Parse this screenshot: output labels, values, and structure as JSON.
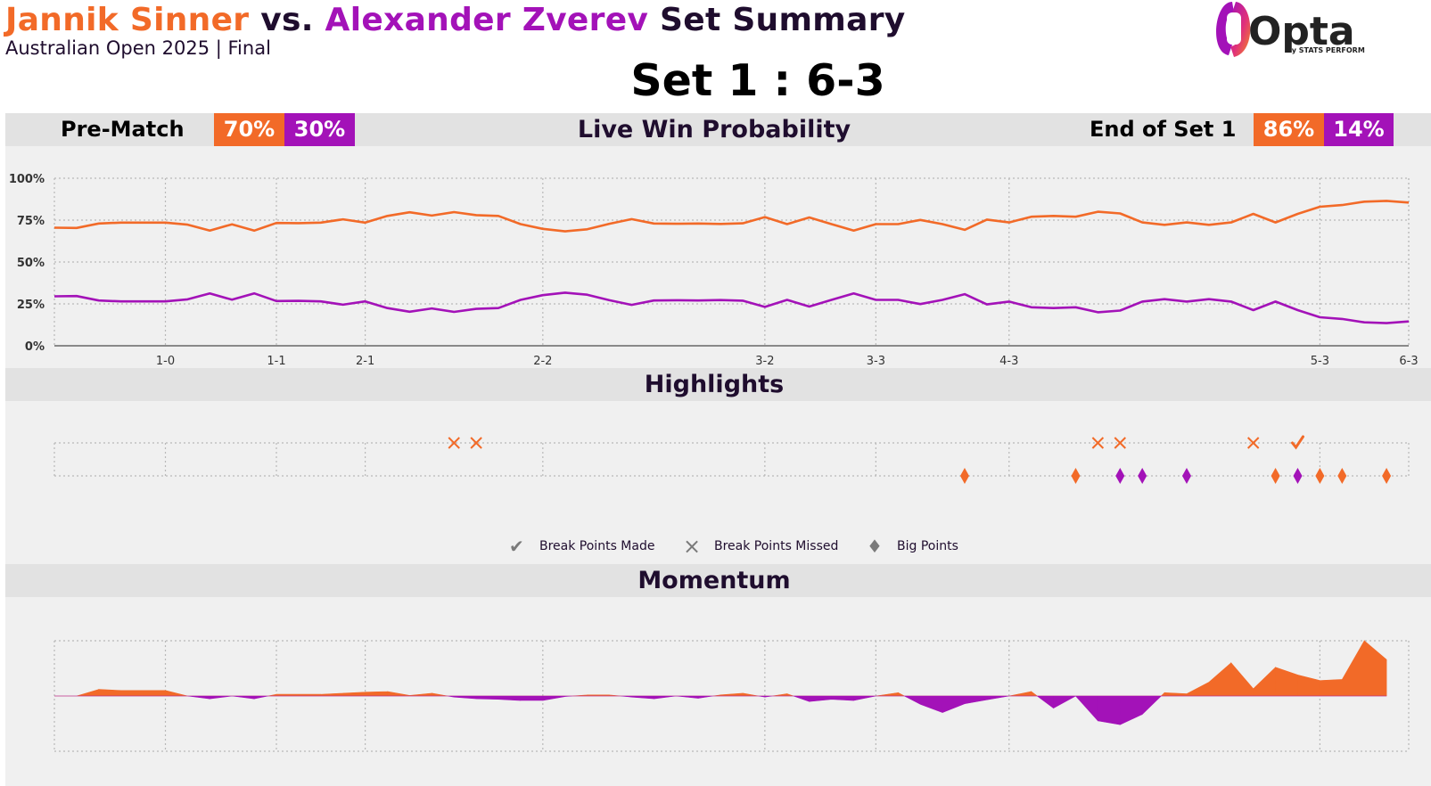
{
  "header": {
    "player1": "Jannik Sinner",
    "vs": "vs.",
    "player2": "Alexander Zverev",
    "title_suffix": "Set Summary",
    "subtitle": "Australian Open 2025 | Final",
    "set_score": "Set 1 : 6-3",
    "logo_text": "Opta",
    "logo_sub": "by STATS PERFORM"
  },
  "colors": {
    "player1": "#f26a28",
    "player2": "#a312b8",
    "title": "#1f0d2e"
  },
  "win_prob_band": {
    "pre_match_label": "Pre-Match",
    "pre_p1": "70%",
    "pre_p2": "30%",
    "title": "Live Win Probability",
    "end_label": "End of Set 1",
    "end_p1": "86%",
    "end_p2": "14%"
  },
  "highlights_band": {
    "title": "Highlights"
  },
  "momentum_band": {
    "title": "Momentum"
  },
  "legend": {
    "made": "Break Points Made",
    "missed": "Break Points Missed",
    "big": "Big Points"
  },
  "chart_data": [
    {
      "type": "line",
      "title": "Live Win Probability",
      "x_unit": "point index",
      "x_range": [
        0,
        61
      ],
      "ylim": [
        0,
        100
      ],
      "yticks": [
        "0%",
        "25%",
        "50%",
        "75%",
        "100%"
      ],
      "game_ticks": [
        {
          "label": "1-0",
          "x": 5
        },
        {
          "label": "1-1",
          "x": 10
        },
        {
          "label": "2-1",
          "x": 14
        },
        {
          "label": "2-2",
          "x": 22
        },
        {
          "label": "3-2",
          "x": 32
        },
        {
          "label": "3-3",
          "x": 37
        },
        {
          "label": "4-3",
          "x": 43
        },
        {
          "label": "5-3",
          "x": 57
        },
        {
          "label": "6-3",
          "x": 61
        }
      ],
      "grid": true,
      "series": [
        {
          "name": "Jannik Sinner",
          "values": [
            70.5,
            70.3,
            73,
            73.5,
            73.5,
            73.5,
            72.3,
            68.8,
            72.5,
            68.7,
            73.3,
            73.2,
            73.5,
            75.5,
            73.5,
            77.5,
            79.7,
            77.7,
            79.8,
            78,
            77.5,
            72.6,
            69.8,
            68.3,
            69.5,
            72.8,
            75.6,
            73,
            72.8,
            73,
            72.7,
            73.1,
            76.8,
            72.6,
            76.6,
            72.6,
            68.8,
            72.6,
            72.6,
            75.1,
            72.6,
            69.2,
            75.3,
            73.6,
            77,
            77.5,
            77,
            80,
            79,
            73.6,
            72.2,
            73.6,
            72.2,
            73.6,
            78.7,
            73.6,
            78.7,
            83,
            84,
            86,
            86.5,
            85.5
          ]
        },
        {
          "name": "Alexander Zverev",
          "values": [
            29.5,
            29.7,
            27,
            26.5,
            26.5,
            26.5,
            27.7,
            31.2,
            27.5,
            31.3,
            26.7,
            26.8,
            26.5,
            24.5,
            26.5,
            22.5,
            20.3,
            22.3,
            20.2,
            22,
            22.5,
            27.4,
            30.2,
            31.7,
            30.5,
            27.2,
            24.4,
            27,
            27.2,
            27,
            27.3,
            26.9,
            23.2,
            27.4,
            23.4,
            27.4,
            31.2,
            27.4,
            27.4,
            24.9,
            27.4,
            30.8,
            24.7,
            26.4,
            23,
            22.5,
            23,
            20,
            21,
            26.4,
            27.8,
            26.4,
            27.8,
            26.4,
            21.3,
            26.4,
            21.3,
            17,
            16,
            14,
            13.5,
            14.5
          ]
        }
      ]
    },
    {
      "type": "scatter",
      "title": "Highlights",
      "x_unit": "point index",
      "x_range": [
        0,
        61
      ],
      "series": [
        {
          "name": "Break Points Missed",
          "player": "Jannik Sinner",
          "marker": "x",
          "x": [
            18,
            19,
            47,
            48,
            54
          ]
        },
        {
          "name": "Break Points Made",
          "player": "Jannik Sinner",
          "marker": "check",
          "x": [
            56
          ]
        },
        {
          "name": "Big Points",
          "player": "Jannik Sinner",
          "marker": "diamond",
          "x": [
            41,
            46,
            55,
            57,
            58,
            60
          ]
        },
        {
          "name": "Big Points",
          "player": "Alexander Zverev",
          "marker": "diamond",
          "x": [
            48,
            49,
            51,
            56
          ]
        }
      ]
    },
    {
      "type": "area",
      "title": "Momentum",
      "x_unit": "point index",
      "x_range": [
        0,
        61
      ],
      "ylim": [
        -1,
        1
      ],
      "values": [
        0,
        0,
        0.12,
        0.1,
        0.1,
        0.1,
        0,
        -0.05,
        0,
        -0.05,
        0.03,
        0.03,
        0.03,
        0.05,
        0.07,
        0.08,
        0.01,
        0.05,
        -0.02,
        -0.05,
        -0.06,
        -0.08,
        -0.08,
        -0.01,
        0.02,
        0.02,
        -0.02,
        -0.05,
        0,
        -0.04,
        0.02,
        0.05,
        -0.02,
        0.04,
        -0.1,
        -0.06,
        -0.08,
        0,
        0.06,
        -0.15,
        -0.3,
        -0.14,
        -0.07,
        0,
        0.08,
        -0.22,
        0,
        -0.45,
        -0.52,
        -0.33,
        0.06,
        0.04,
        0.25,
        0.6,
        0.13,
        0.52,
        0.38,
        0.28,
        0.3,
        1.0,
        0.66
      ]
    }
  ]
}
